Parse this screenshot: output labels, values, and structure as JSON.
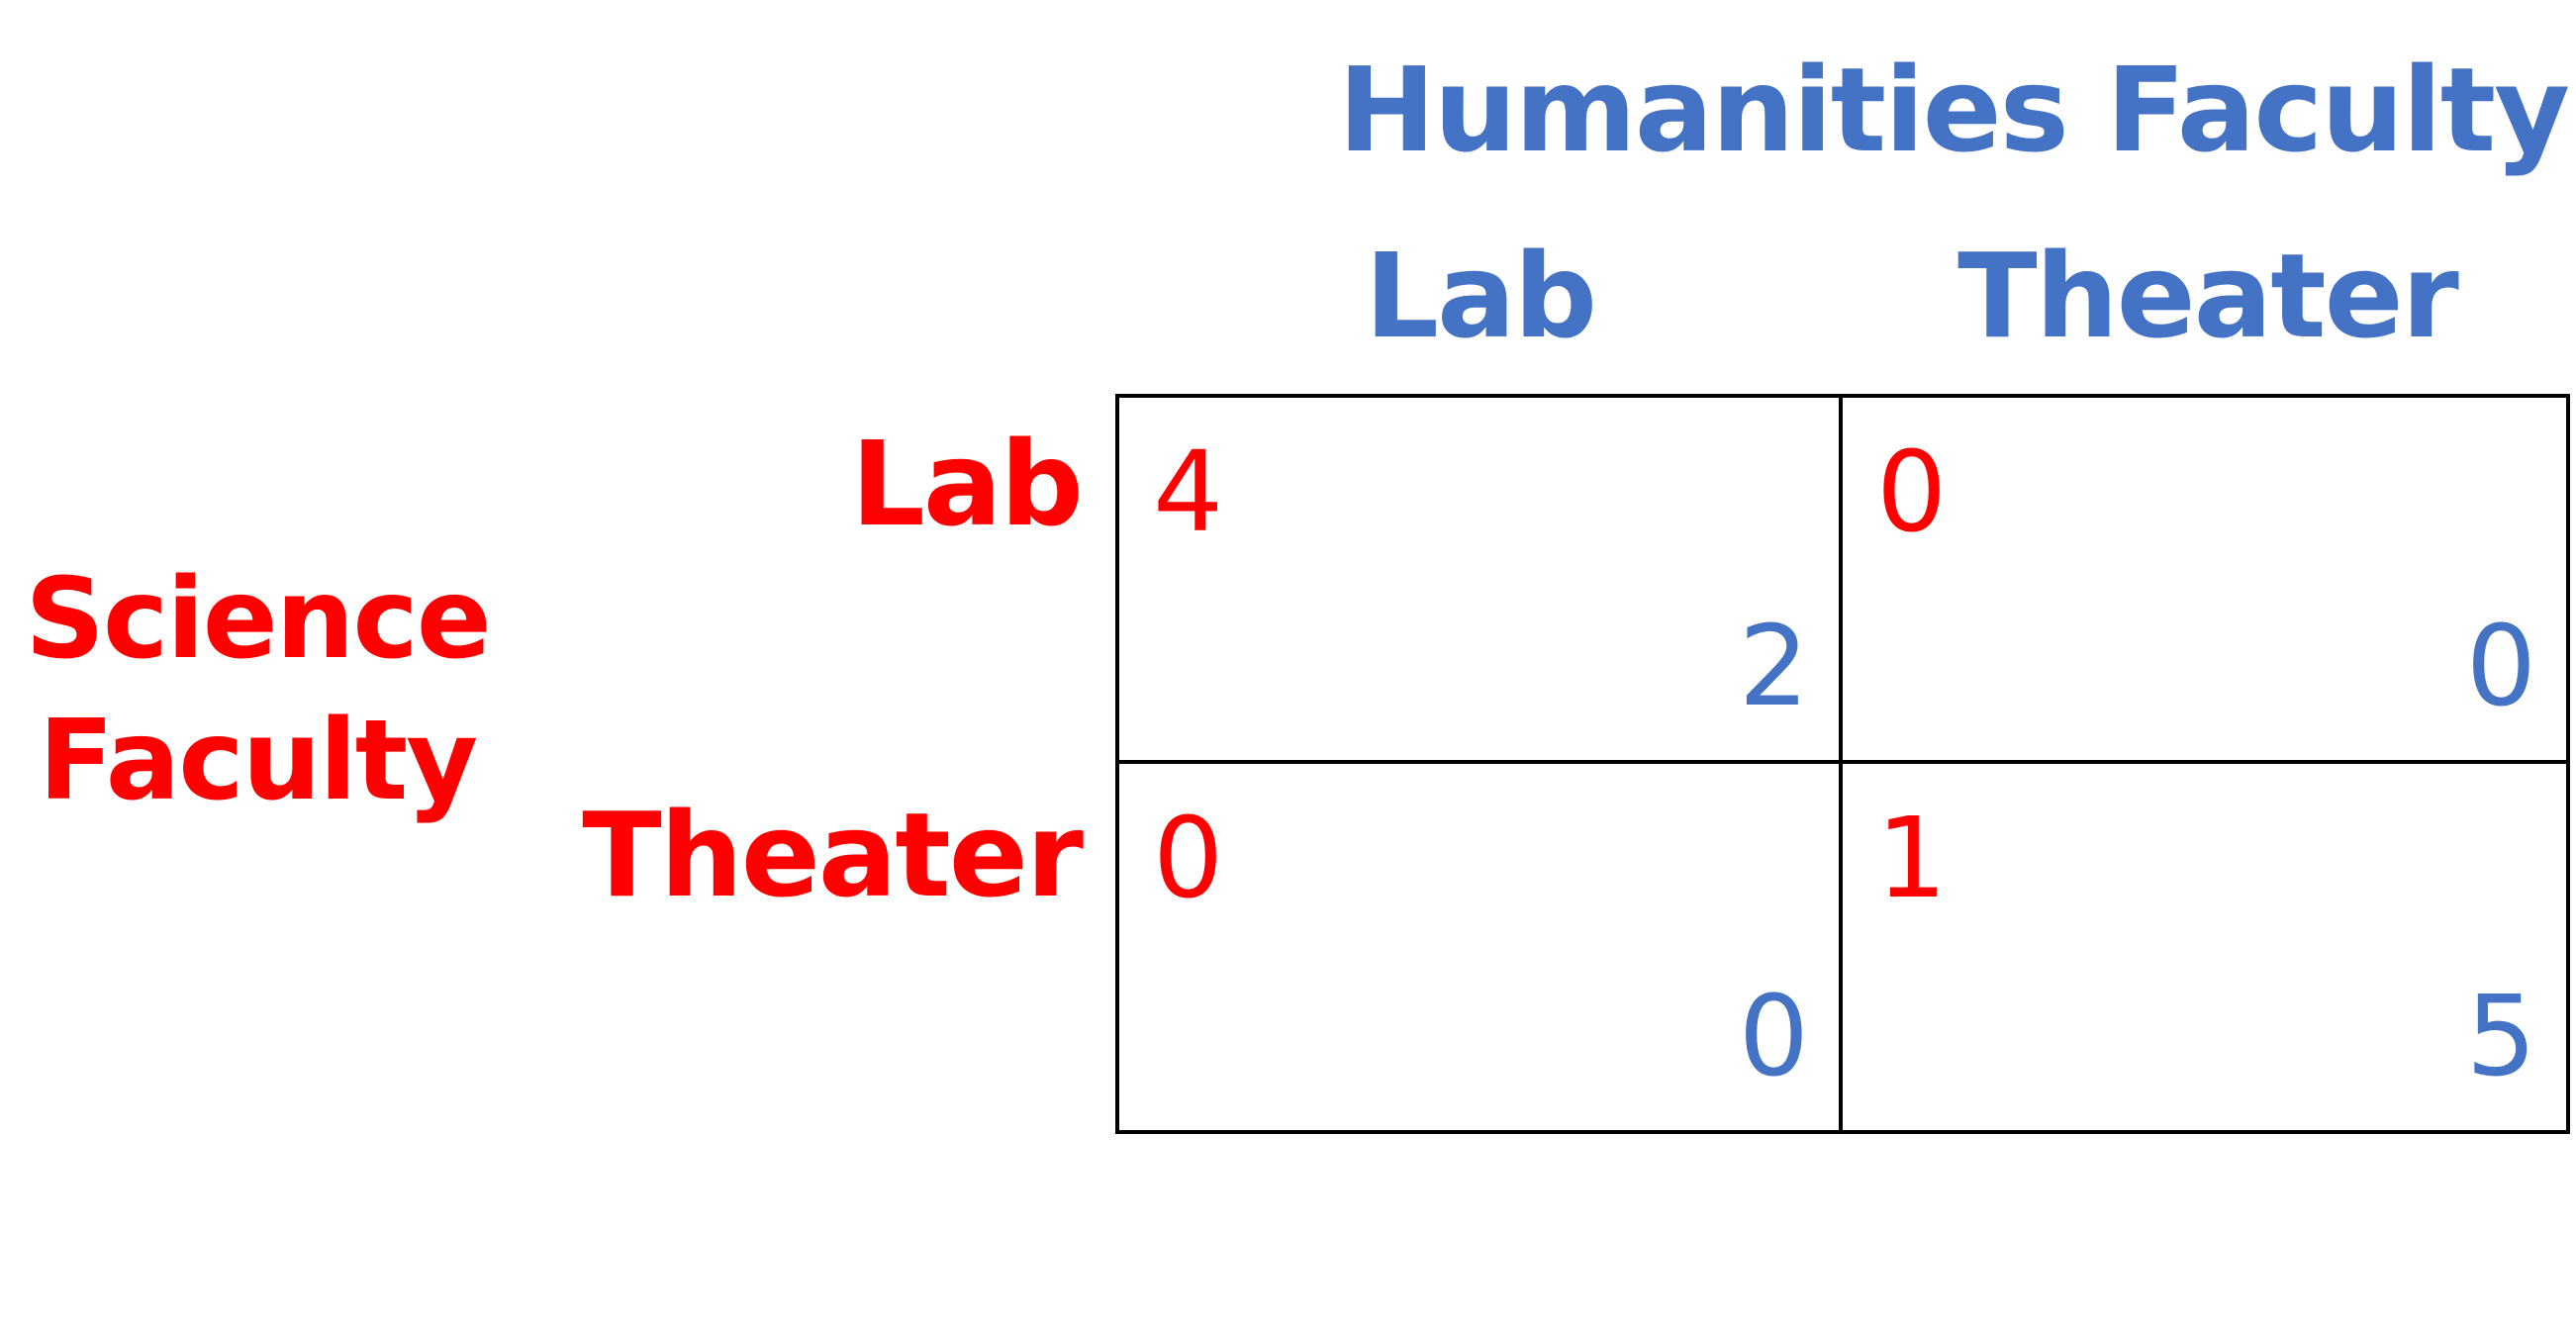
{
  "colors": {
    "row_player": "#ff0000",
    "column_player": "#4472c4",
    "grid": "#000000"
  },
  "column_player": {
    "name": "Humanities Faculty",
    "strategies": [
      "Lab",
      "Theater"
    ]
  },
  "row_player": {
    "name_line1": "Science",
    "name_line2": "Faculty",
    "strategies": [
      "Lab",
      "Theater"
    ]
  },
  "payoffs": [
    [
      {
        "row": "4",
        "col": "2"
      },
      {
        "row": "0",
        "col": "0"
      }
    ],
    [
      {
        "row": "0",
        "col": "0"
      },
      {
        "row": "1",
        "col": "5"
      }
    ]
  ]
}
